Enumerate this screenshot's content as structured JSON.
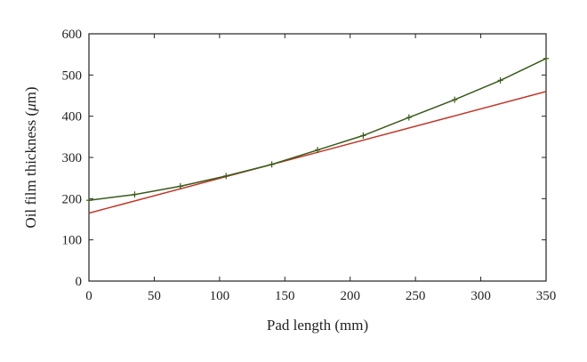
{
  "chart_data": {
    "type": "line",
    "xlabel": "Pad length (mm)",
    "ylabel_prefix": "Oil film thickness (",
    "ylabel_unit": "μ",
    "ylabel_suffix": "m)",
    "xlim": [
      0,
      350
    ],
    "ylim": [
      0,
      600
    ],
    "xticks": [
      0,
      50,
      100,
      150,
      200,
      250,
      300,
      350
    ],
    "yticks": [
      0,
      100,
      200,
      300,
      400,
      500,
      600
    ],
    "grid": false,
    "series": [
      {
        "color": "#c0392b",
        "marker": false,
        "x": [
          0,
          350
        ],
        "y": [
          165,
          460
        ]
      },
      {
        "color": "#3a5a1a",
        "marker": true,
        "x": [
          0,
          35,
          70,
          105,
          140,
          175,
          210,
          245,
          280,
          315,
          350
        ],
        "y": [
          196,
          210,
          230,
          255,
          283,
          318,
          353,
          397,
          440,
          487,
          540
        ]
      }
    ]
  }
}
